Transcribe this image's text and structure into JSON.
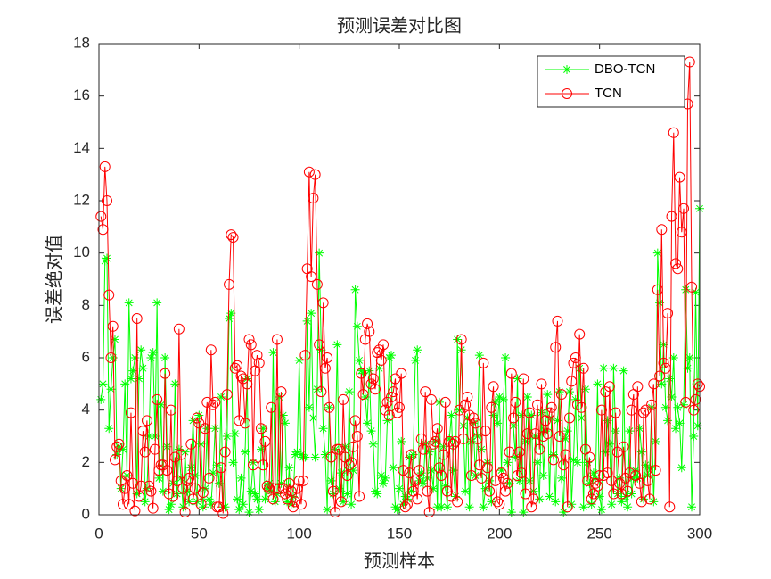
{
  "chart_data": {
    "type": "line",
    "title": "预测误差对比图",
    "xlabel": "预测样本",
    "ylabel": "误差绝对值",
    "xlim": [
      0,
      300
    ],
    "xticks": [
      0,
      50,
      100,
      150,
      200,
      250,
      300
    ],
    "ylim": [
      0,
      18
    ],
    "yticks": [
      0,
      2,
      4,
      6,
      8,
      10,
      12,
      14,
      16,
      18
    ],
    "legend_position": "upper right",
    "x": [
      1,
      2,
      3,
      4,
      5,
      6,
      7,
      8,
      9,
      10,
      11,
      12,
      13,
      14,
      15,
      16,
      17,
      18,
      19,
      20,
      21,
      22,
      23,
      24,
      25,
      26,
      27,
      28,
      29,
      30,
      31,
      32,
      33,
      34,
      35,
      36,
      37,
      38,
      39,
      40,
      41,
      42,
      43,
      44,
      45,
      46,
      47,
      48,
      49,
      50,
      51,
      52,
      53,
      54,
      55,
      56,
      57,
      58,
      59,
      60,
      61,
      62,
      63,
      64,
      65,
      66,
      67,
      68,
      69,
      70,
      71,
      72,
      73,
      74,
      75,
      76,
      77,
      78,
      79,
      80,
      81,
      82,
      83,
      84,
      85,
      86,
      87,
      88,
      89,
      90,
      91,
      92,
      93,
      94,
      95,
      96,
      97,
      98,
      99,
      100,
      101,
      102,
      103,
      104,
      105,
      106,
      107,
      108,
      109,
      110,
      111,
      112,
      113,
      114,
      115,
      116,
      117,
      118,
      119,
      120,
      121,
      122,
      123,
      124,
      125,
      126,
      127,
      128,
      129,
      130,
      131,
      132,
      133,
      134,
      135,
      136,
      137,
      138,
      139,
      140,
      141,
      142,
      143,
      144,
      145,
      146,
      147,
      148,
      149,
      150,
      151,
      152,
      153,
      154,
      155,
      156,
      157,
      158,
      159,
      160,
      161,
      162,
      163,
      164,
      165,
      166,
      167,
      168,
      169,
      170,
      171,
      172,
      173,
      174,
      175,
      176,
      177,
      178,
      179,
      180,
      181,
      182,
      183,
      184,
      185,
      186,
      187,
      188,
      189,
      190,
      191,
      192,
      193,
      194,
      195,
      196,
      197,
      198,
      199,
      200,
      201,
      202,
      203,
      204,
      205,
      206,
      207,
      208,
      209,
      210,
      211,
      212,
      213,
      214,
      215,
      216,
      217,
      218,
      219,
      220,
      221,
      222,
      223,
      224,
      225,
      226,
      227,
      228,
      229,
      230,
      231,
      232,
      233,
      234,
      235,
      236,
      237,
      238,
      239,
      240,
      241,
      242,
      243,
      244,
      245,
      246,
      247,
      248,
      249,
      250,
      251,
      252,
      253,
      254,
      255,
      256,
      257,
      258,
      259,
      260,
      261,
      262,
      263,
      264,
      265,
      266,
      267,
      268,
      269,
      270,
      271,
      272,
      273,
      274,
      275,
      276,
      277,
      278,
      279,
      280,
      281,
      282,
      283,
      284,
      285,
      286,
      287,
      288,
      289,
      290,
      291,
      292,
      293,
      294,
      295,
      296,
      297,
      298,
      299,
      300
    ],
    "series": [
      {
        "name": "DBO-TCN",
        "color": "#00ff00",
        "marker": "asterisk",
        "values": [
          4.4,
          5.0,
          9.7,
          9.8,
          3.3,
          4.8,
          6.0,
          6.7,
          2.3,
          2.6,
          1.0,
          2.5,
          5.0,
          1.5,
          8.1,
          5.2,
          5.5,
          6.0,
          0.8,
          5.2,
          6.3,
          5.6,
          0.5,
          1.0,
          3.0,
          6.0,
          6.2,
          3.0,
          8.1,
          1.4,
          4.2,
          0.9,
          6.0,
          2.6,
          0.2,
          0.4,
          1.2,
          5.0,
          0.8,
          2.5,
          1.4,
          0.3,
          2.4,
          0.9,
          0.5,
          1.8,
          3.6,
          1.5,
          0.5,
          3.8,
          2.7,
          0.3,
          1.0,
          3.3,
          0.6,
          0.4,
          1.6,
          3.3,
          1.9,
          1.2,
          4.5,
          0.3,
          0.3,
          3.0,
          7.5,
          7.7,
          2.0,
          3.1,
          0.6,
          0.2,
          1.4,
          0.4,
          2.4,
          5.2,
          0.1,
          0.9,
          2.0,
          0.8,
          0.6,
          0.2,
          2.5,
          3.3,
          0.6,
          1.0,
          1.2,
          0.9,
          6.2,
          0.5,
          0.8,
          4.5,
          1.2,
          3.8,
          3.5,
          0.5,
          1.8,
          0.4,
          0.7,
          2.3,
          2.4,
          5.9,
          2.3,
          2.2,
          2.2,
          7.4,
          4.1,
          7.7,
          3.7,
          2.2,
          4.8,
          10.0,
          6.3,
          3.3,
          2.3,
          0.2,
          4.1,
          1.3,
          0.8,
          2.5,
          6.5,
          1.0,
          1.6,
          0.5,
          2.6,
          0.8,
          4.7,
          0.4,
          1.7,
          8.6,
          7.2,
          5.9,
          5.5,
          5.4,
          4.5,
          3.5,
          5.5,
          3.2,
          2.7,
          0.9,
          0.8,
          5.6,
          1.5,
          1.2,
          1.4,
          3.6,
          6.0,
          6.1,
          1.8,
          0.3,
          0.2,
          1.0,
          2.8,
          0.4,
          0.7,
          0.6,
          2.2,
          0.9,
          2.3,
          5.9,
          6.3,
          1.3,
          1.6,
          1.2,
          2.7,
          1.4,
          2.4,
          1.7,
          1.0,
          2.8,
          0.3,
          4.3,
          0.3,
          2.6,
          1.1,
          0.3,
          2.9,
          3.8,
          1.7,
          0.7,
          6.7,
          4.0,
          6.3,
          3.4,
          0.9,
          3.7,
          0.3,
          2.8,
          3.5,
          1.5,
          3.0,
          6.1,
          2.5,
          0.3,
          1.0,
          2.0,
          1.3,
          0.5,
          3.8,
          4.3,
          3.5,
          4.5,
          1.7,
          4.4,
          6.0,
          2.0,
          1.2,
          0.1,
          3.4,
          2.2,
          5.2,
          1.3,
          3.8,
          0.1,
          2.8,
          4.5,
          1.3,
          3.8,
          0.9,
          3.0,
          2.0,
          0.6,
          3.9,
          1.5,
          3.2,
          4.6,
          0.7,
          3.7,
          2.3,
          0.5,
          3.6,
          4.7,
          1.4,
          0.1,
          2.9,
          3.2,
          4.7,
          0.4,
          2.1,
          4.4,
          2.0,
          5.6,
          3.7,
          0.3,
          4.8,
          2.0,
          1.2,
          0.4,
          1.6,
          1.4,
          5.0,
          0.7,
          0.2,
          5.6,
          2.4,
          3.6,
          2.7,
          0.4,
          5.6,
          3.2,
          0.8,
          1.4,
          0.5,
          5.5,
          0.7,
          0.3,
          3.2,
          0.8,
          1.4,
          1.7,
          1.4,
          3.3,
          2.4,
          0.6,
          1.9,
          1.5,
          1.8,
          4.1,
          0.5,
          2.8,
          10.0,
          8.1,
          5.0,
          6.5,
          4.1,
          3.6,
          5.2,
          4.5,
          6.0,
          3.3,
          4.1,
          3.5,
          1.8,
          4.2,
          8.6,
          5.6,
          6.0,
          0.3,
          3.0,
          8.5,
          3.4,
          11.7
        ]
      },
      {
        "name": "TCN",
        "color": "#ff0000",
        "marker": "circle",
        "values": [
          11.4,
          10.9,
          13.3,
          12.0,
          8.4,
          6.0,
          7.2,
          2.1,
          2.6,
          2.7,
          1.3,
          0.4,
          1.0,
          1.5,
          0.4,
          3.9,
          1.2,
          0.15,
          7.5,
          0.7,
          1.1,
          3.2,
          2.4,
          3.6,
          1.1,
          0.9,
          0.25,
          2.5,
          4.4,
          1.7,
          1.9,
          1.9,
          5.4,
          1.7,
          0.8,
          4.0,
          0.7,
          2.2,
          1.3,
          7.1,
          2.3,
          1.0,
          0.1,
          1.3,
          1.4,
          2.7,
          0.6,
          1.0,
          3.7,
          3.5,
          0.4,
          0.85,
          3.3,
          4.3,
          1.4,
          6.3,
          4.2,
          4.3,
          0.3,
          0.3,
          1.8,
          0.05,
          2.4,
          4.6,
          8.8,
          10.7,
          10.6,
          5.6,
          5.7,
          3.6,
          5.3,
          5.2,
          3.5,
          5.0,
          6.7,
          6.5,
          1.9,
          5.5,
          6.1,
          5.8,
          3.3,
          1.9,
          2.8,
          1.1,
          1.0,
          4.1,
          0.6,
          1.0,
          6.7,
          1.0,
          4.7,
          1.0,
          0.8,
          0.6,
          1.2,
          0.9,
          0.3,
          0.5,
          1.0,
          1.3,
          0.4,
          1.3,
          6.1,
          9.4,
          13.1,
          9.1,
          12.1,
          13.0,
          8.8,
          6.5,
          4.7,
          8.1,
          5.6,
          6.0,
          4.1,
          2.2,
          0.9,
          0.1,
          2.5,
          2.5,
          0.5,
          4.4,
          2.2,
          1.5,
          1.9,
          2.0,
          2.6,
          3.6,
          3.0,
          0.7,
          5.4,
          4.6,
          6.7,
          7.3,
          7.0,
          5.0,
          5.2,
          4.8,
          6.2,
          6.3,
          5.9,
          6.5,
          4.0,
          4.3,
          3.8,
          4.5,
          4.7,
          5.2,
          3.9,
          4.1,
          5.4,
          1.7,
          0.3,
          0.4,
          1.6,
          2.3,
          0.9,
          1.3,
          0.6,
          1.7,
          2.9,
          2.5,
          4.7,
          0.9,
          0.1,
          4.4,
          2.7,
          2.8,
          3.3,
          1.8,
          1.5,
          2.3,
          4.3,
          0.9,
          2.8,
          0.7,
          2.7,
          2.8,
          0.5,
          4.0,
          6.7,
          2.9,
          4.2,
          4.5,
          3.8,
          1.5,
          3.7,
          3.5,
          2.9,
          1.9,
          1.4,
          5.8,
          3.2,
          1.8,
          0.9,
          4.1,
          4.9,
          1.3,
          0.5,
          0.4,
          1.6,
          1.4,
          0.9,
          1.2,
          2.4,
          5.4,
          3.7,
          4.3,
          1.5,
          2.4,
          1.6,
          5.2,
          0.8,
          3.1,
          3.9,
          0.3,
          0.6,
          3.1,
          4.2,
          2.5,
          5.0,
          3.0,
          3.6,
          3.1,
          3.9,
          4.1,
          2.1,
          6.4,
          7.4,
          3.0,
          4.6,
          1.9,
          2.3,
          0.3,
          3.7,
          5.1,
          5.8,
          6.0,
          4.2,
          6.9,
          4.1,
          5.6,
          2.5,
          1.3,
          2.2,
          0.6,
          0.8,
          1.2,
          1.1,
          1.5,
          4.0,
          1.5,
          4.7,
          1.6,
          4.9,
          1.3,
          0.8,
          3.9,
          2.4,
          1.2,
          0.8,
          2.6,
          1.4,
          0.9,
          1.6,
          4.0,
          4.6,
          1.5,
          4.9,
          1.2,
          0.5,
          3.9,
          4.0,
          1.3,
          0.6,
          4.2,
          5.0,
          1.7,
          8.6,
          5.3,
          10.9,
          5.8,
          5.6,
          7.7,
          0.3,
          11.4,
          14.6,
          9.6,
          9.4,
          12.9,
          10.8,
          11.7,
          4.3,
          15.7,
          17.3,
          8.7,
          4.0,
          4.4,
          5.0,
          4.9
        ]
      }
    ]
  }
}
